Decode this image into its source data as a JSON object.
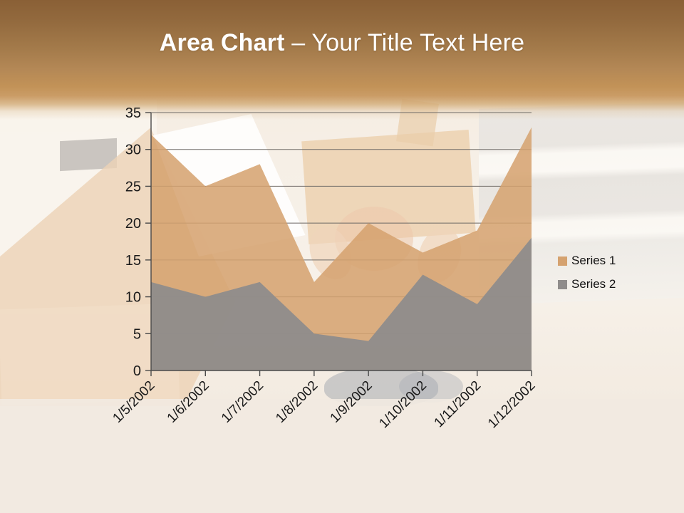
{
  "slide": {
    "title": {
      "heading": "Area Chart",
      "subtitle": "– Your Title Text Here"
    }
  },
  "chart_data": {
    "type": "area",
    "mode": "overlapping",
    "categories": [
      "1/5/2002",
      "1/6/2002",
      "1/7/2002",
      "1/8/2002",
      "1/9/2002",
      "1/10/2002",
      "1/11/2002",
      "1/12/2002"
    ],
    "series": [
      {
        "name": "Series 1",
        "color": "#D5A26F",
        "values": [
          32,
          25,
          28,
          12,
          20,
          16,
          19,
          33
        ]
      },
      {
        "name": "Series 2",
        "color": "#8F8C8B",
        "values": [
          12,
          10,
          12,
          5,
          4,
          13,
          9,
          18
        ]
      }
    ],
    "y_axis": {
      "min": 0,
      "max": 35,
      "tick_step": 5,
      "ticks": [
        0,
        5,
        10,
        15,
        20,
        25,
        30,
        35
      ]
    },
    "grid": true,
    "legend_position": "right",
    "axis_color": "#4a4a4a",
    "gridline_color": "#6e6a66",
    "tick_label_color": "#1a1a1a"
  }
}
